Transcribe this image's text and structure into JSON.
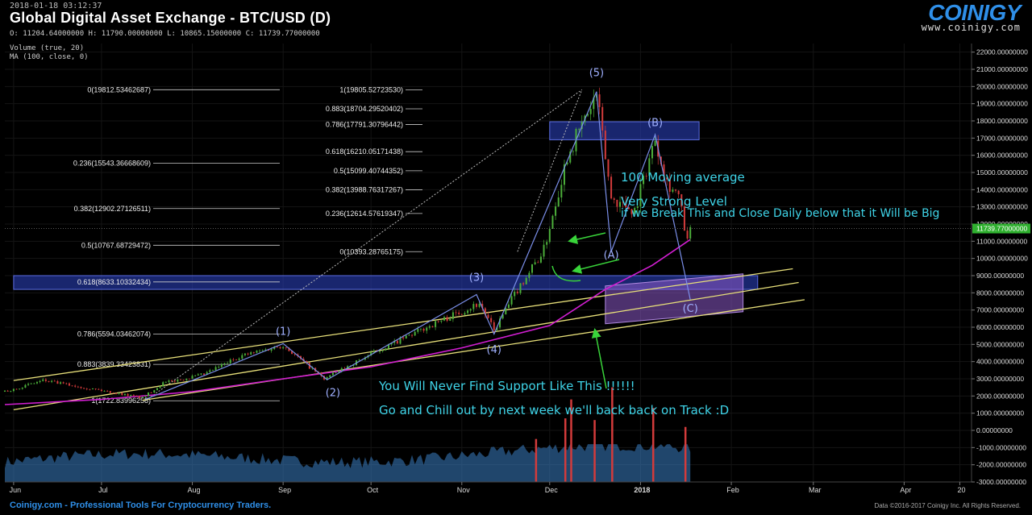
{
  "header": {
    "timestamp": "2018-01-18 03:12:37",
    "title": "Global Digital Asset Exchange - BTC/USD (D)",
    "ohlc": "O: 11204.64000000 H: 11790.00000000 L: 10865.15000000 C: 11739.77000000",
    "indicator_volume": "Volume (true, 20)",
    "indicator_ma": "MA (100, close, 0)"
  },
  "logo": {
    "brand": "COINIGY",
    "site": "www.coinigy.com"
  },
  "footer": {
    "left": "Coinigy.com - Professional Tools For Cryptocurrency Traders.",
    "right": "Data ©2016-2017 Coinigy Inc. All Rights Reserved."
  },
  "annotations": {
    "ma_label": "100 Moving average",
    "level_line1": "Very Strong Level",
    "level_line2": "if we Break This and Close Daily below that it Will be Big",
    "support_text": "You Will Never Find Support Like This !!!!!!",
    "chill_text": "Go and Chill out by next week we'll back back on Track :D"
  },
  "colors": {
    "background": "#000000",
    "candle_up": "#4caf3a",
    "candle_down": "#d33b3b",
    "ma_line": "#d21ed2",
    "channel_lines": "#e8e07a",
    "zone_blue": "#2a3fb8",
    "zone_purple": "#8c5ac8",
    "wave_line": "#7a8ee8",
    "annotation_text": "#3fd4e8",
    "arrow": "#39d43a",
    "price_tag": "#2fb02f",
    "volume_fill": "#3a7fc4"
  },
  "chart_data": {
    "type": "candlestick",
    "title": "Global Digital Asset Exchange - BTC/USD (D)",
    "x_tick_labels": [
      "Jun",
      "Jul",
      "Aug",
      "Sep",
      "Oct",
      "Nov",
      "Dec",
      "2018",
      "Feb",
      "Mar",
      "Apr",
      "20"
    ],
    "x_range": [
      "2017-05-29",
      "2018-04-24"
    ],
    "y_range": [
      -3000,
      22500
    ],
    "y_tick_labels": [
      "22000.00000000",
      "21000.00000000",
      "20000.00000000",
      "19000.00000000",
      "18000.00000000",
      "17000.00000000",
      "16000.00000000",
      "15000.00000000",
      "14000.00000000",
      "13000.00000000",
      "12000.00000000",
      "11000.00000000",
      "10000.00000000",
      "9000.00000000",
      "8000.00000000",
      "7000.00000000",
      "6000.00000000",
      "5000.00000000",
      "4000.00000000",
      "3000.00000000",
      "2000.00000000",
      "1000.00000000",
      "0.00000000",
      "-1000.00000000",
      "-2000.00000000",
      "-3000.00000000"
    ],
    "y_tick_values": [
      22000,
      21000,
      20000,
      19000,
      18000,
      17000,
      16000,
      15000,
      14000,
      13000,
      12000,
      11000,
      10000,
      9000,
      8000,
      7000,
      6000,
      5000,
      4000,
      3000,
      2000,
      1000,
      0,
      -1000,
      -2000,
      -3000
    ],
    "last_price": 11739.77,
    "last_price_label": "11739.77000000",
    "price_path": [
      [
        "2017-05-29",
        2250
      ],
      [
        "2017-06-11",
        2900
      ],
      [
        "2017-06-25",
        2500
      ],
      [
        "2017-07-15",
        1900
      ],
      [
        "2017-07-22",
        2750
      ],
      [
        "2017-08-05",
        3250
      ],
      [
        "2017-08-17",
        4300
      ],
      [
        "2017-09-01",
        4950
      ],
      [
        "2017-09-15",
        3000
      ],
      [
        "2017-09-30",
        4350
      ],
      [
        "2017-10-20",
        6000
      ],
      [
        "2017-11-07",
        7400
      ],
      [
        "2017-11-12",
        5800
      ],
      [
        "2017-11-20",
        8200
      ],
      [
        "2017-11-29",
        10500
      ],
      [
        "2017-12-07",
        16000
      ],
      [
        "2017-12-17",
        19500
      ],
      [
        "2017-12-22",
        13500
      ],
      [
        "2017-12-30",
        12800
      ],
      [
        "2018-01-06",
        17000
      ],
      [
        "2018-01-10",
        14500
      ],
      [
        "2018-01-14",
        13600
      ],
      [
        "2018-01-17",
        10900
      ],
      [
        "2018-01-18",
        11740
      ]
    ],
    "moving_average_100": [
      [
        "2017-05-29",
        1500
      ],
      [
        "2017-07-01",
        1800
      ],
      [
        "2017-08-01",
        2250
      ],
      [
        "2017-09-01",
        3000
      ],
      [
        "2017-10-01",
        3700
      ],
      [
        "2017-11-01",
        4800
      ],
      [
        "2017-12-01",
        6100
      ],
      [
        "2017-12-20",
        8200
      ],
      [
        "2018-01-05",
        9600
      ],
      [
        "2018-01-18",
        11100
      ]
    ],
    "volume_tall_bars": [
      {
        "date": "2017-11-26"
      },
      {
        "date": "2017-12-06"
      },
      {
        "date": "2017-12-08"
      },
      {
        "date": "2017-12-16"
      },
      {
        "date": "2017-12-22"
      },
      {
        "date": "2018-01-05"
      },
      {
        "date": "2018-01-16"
      }
    ],
    "fib_left": {
      "levels": [
        {
          "label": "0(19812.53462687)",
          "value": 19812.53
        },
        {
          "label": "0.236(15543.36668609)",
          "value": 15543.37
        },
        {
          "label": "0.382(12902.27126511)",
          "value": 12902.27
        },
        {
          "label": "0.5(10767.68729472)",
          "value": 10767.69
        },
        {
          "label": "0.618(8633.10332434)",
          "value": 8633.1
        },
        {
          "label": "0.786(5594.03462074)",
          "value": 5594.03
        },
        {
          "label": "0.883(3839.33423831)",
          "value": 3839.33
        },
        {
          "label": "1(1722.83996258)",
          "value": 1722.84
        }
      ],
      "from": [
        "2017-07-16",
        1722.84
      ],
      "to": [
        "2017-12-12",
        19812.53
      ]
    },
    "fib_right": {
      "levels": [
        {
          "label": "1(19805.52723530)",
          "value": 19805.53
        },
        {
          "label": "0.883(18704.29520402)",
          "value": 18704.3
        },
        {
          "label": "0.786(17791.30796442)",
          "value": 17791.31
        },
        {
          "label": "0.618(16210.05171438)",
          "value": 16210.05
        },
        {
          "label": "0.5(15099.40744352)",
          "value": 15099.41
        },
        {
          "label": "0.382(13988.76317267)",
          "value": 13988.76
        },
        {
          "label": "0.236(12614.57619347)",
          "value": 12614.58
        },
        {
          "label": "0(10393.28765175)",
          "value": 10393.29
        }
      ],
      "from": [
        "2017-11-20",
        10393.29
      ],
      "to": [
        "2017-12-12",
        19805.53
      ]
    },
    "wave_labels": [
      {
        "label": "(1)",
        "date": "2017-09-01",
        "value": 5550
      },
      {
        "label": "(2)",
        "date": "2017-09-18",
        "value": 2000
      },
      {
        "label": "(3)",
        "date": "2017-11-06",
        "value": 8700
      },
      {
        "label": "(4)",
        "date": "2017-11-12",
        "value": 4500
      },
      {
        "label": "(5)",
        "date": "2017-12-17",
        "value": 20600
      },
      {
        "label": "(A)",
        "date": "2017-12-22",
        "value": 10000
      },
      {
        "label": "(B)",
        "date": "2018-01-06",
        "value": 17700
      },
      {
        "label": "(C)",
        "date": "2018-01-18",
        "value": 6900
      }
    ],
    "wave_path": [
      [
        "2017-07-16",
        1800
      ],
      [
        "2017-09-01",
        5050
      ],
      [
        "2017-09-16",
        2950
      ],
      [
        "2017-11-06",
        7900
      ],
      [
        "2017-11-12",
        5600
      ],
      [
        "2017-12-17",
        19700
      ],
      [
        "2017-12-22",
        10400
      ],
      [
        "2018-01-06",
        17200
      ],
      [
        "2018-01-18",
        7600
      ]
    ],
    "channel_lines": [
      {
        "from": [
          "2017-06-01",
          2900
        ],
        "to": [
          "2018-02-22",
          9400
        ]
      },
      {
        "from": [
          "2017-06-01",
          1200
        ],
        "to": [
          "2018-02-24",
          8600
        ]
      },
      {
        "from": [
          "2017-07-15",
          1750
        ],
        "to": [
          "2018-02-26",
          7600
        ]
      }
    ],
    "zones": [
      {
        "name": "blue_support",
        "x": [
          "2017-06-01",
          "2018-02-10"
        ],
        "y": [
          8200,
          9000
        ]
      },
      {
        "name": "blue_resistance",
        "x": [
          "2017-12-01",
          "2018-01-21"
        ],
        "y": [
          16900,
          17950
        ]
      },
      {
        "name": "purple_target",
        "x": [
          "2017-12-20",
          "2018-02-05"
        ],
        "y": [
          6200,
          8400
        ]
      }
    ]
  }
}
